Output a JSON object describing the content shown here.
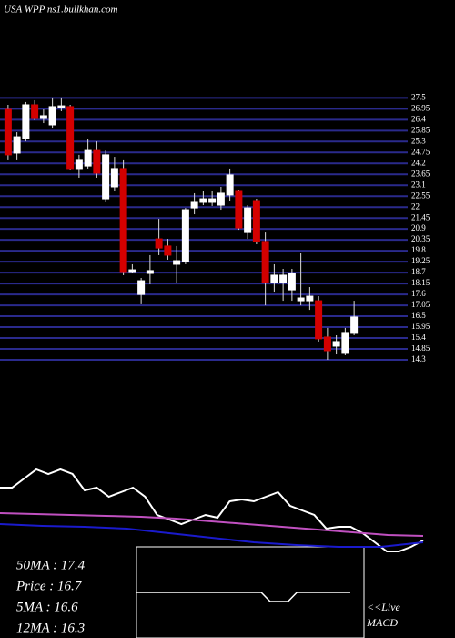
{
  "chart_data": {
    "type": "candlestick",
    "title": "USA WPP ns1.bullkhan.com",
    "ylim": [
      14.3,
      27.7
    ],
    "yticks": [
      27.5,
      26.95,
      26.4,
      25.85,
      25.3,
      24.75,
      24.2,
      23.65,
      23.1,
      22.55,
      22,
      21.45,
      20.9,
      20.35,
      19.8,
      19.25,
      18.7,
      18.15,
      17.6,
      17.05,
      16.5,
      15.95,
      15.4,
      14.85,
      14.3
    ],
    "grid": true,
    "grid_color": "#2a2a8c",
    "up_color": "#ffffff",
    "down_color": "#d40000",
    "candles": [
      {
        "open": 26.92,
        "high": 27.15,
        "low": 24.4,
        "close": 24.63
      },
      {
        "open": 24.72,
        "high": 25.77,
        "low": 24.4,
        "close": 25.54
      },
      {
        "open": 25.45,
        "high": 27.29,
        "low": 25.31,
        "close": 27.15
      },
      {
        "open": 27.15,
        "high": 27.38,
        "low": 26.37,
        "close": 26.46
      },
      {
        "open": 26.46,
        "high": 26.92,
        "low": 26.23,
        "close": 26.6
      },
      {
        "open": 26.14,
        "high": 27.52,
        "low": 26.0,
        "close": 27.06
      },
      {
        "open": 27.01,
        "high": 27.52,
        "low": 26.83,
        "close": 27.1
      },
      {
        "open": 27.06,
        "high": 27.15,
        "low": 23.85,
        "close": 23.94
      },
      {
        "open": 23.94,
        "high": 24.63,
        "low": 23.48,
        "close": 24.4
      },
      {
        "open": 24.07,
        "high": 25.45,
        "low": 23.94,
        "close": 24.85
      },
      {
        "open": 24.85,
        "high": 25.31,
        "low": 23.48,
        "close": 23.71
      },
      {
        "open": 22.42,
        "high": 24.85,
        "low": 22.24,
        "close": 24.63
      },
      {
        "open": 23.02,
        "high": 24.53,
        "low": 22.79,
        "close": 23.94
      },
      {
        "open": 23.94,
        "high": 24.4,
        "low": 18.57,
        "close": 18.75
      },
      {
        "open": 18.75,
        "high": 19.12,
        "low": 18.66,
        "close": 18.84
      },
      {
        "open": 17.6,
        "high": 18.43,
        "low": 17.15,
        "close": 18.29
      },
      {
        "open": 18.66,
        "high": 19.58,
        "low": 18.11,
        "close": 18.8
      },
      {
        "open": 20.4,
        "high": 21.41,
        "low": 19.58,
        "close": 19.94
      },
      {
        "open": 20.04,
        "high": 20.4,
        "low": 19.35,
        "close": 19.58
      },
      {
        "open": 19.12,
        "high": 20.04,
        "low": 18.2,
        "close": 19.3
      },
      {
        "open": 19.26,
        "high": 21.96,
        "low": 19.12,
        "close": 21.87
      },
      {
        "open": 21.96,
        "high": 22.7,
        "low": 21.64,
        "close": 22.24
      },
      {
        "open": 22.24,
        "high": 22.79,
        "low": 22.1,
        "close": 22.42
      },
      {
        "open": 22.24,
        "high": 22.79,
        "low": 22.06,
        "close": 22.42
      },
      {
        "open": 22.1,
        "high": 23.02,
        "low": 21.87,
        "close": 22.7
      },
      {
        "open": 22.61,
        "high": 23.94,
        "low": 22.33,
        "close": 23.62
      },
      {
        "open": 22.79,
        "high": 22.88,
        "low": 20.86,
        "close": 20.95
      },
      {
        "open": 20.72,
        "high": 22.1,
        "low": 20.4,
        "close": 21.96
      },
      {
        "open": 22.33,
        "high": 22.42,
        "low": 20.13,
        "close": 20.27
      },
      {
        "open": 20.27,
        "high": 20.72,
        "low": 17.05,
        "close": 18.2
      },
      {
        "open": 18.2,
        "high": 19.12,
        "low": 17.74,
        "close": 18.57
      },
      {
        "open": 18.2,
        "high": 18.89,
        "low": 17.28,
        "close": 18.57
      },
      {
        "open": 17.83,
        "high": 18.89,
        "low": 17.28,
        "close": 18.66
      },
      {
        "open": 17.28,
        "high": 19.67,
        "low": 17.05,
        "close": 17.42
      },
      {
        "open": 17.28,
        "high": 17.97,
        "low": 16.82,
        "close": 17.51
      },
      {
        "open": 17.28,
        "high": 17.51,
        "low": 15.22,
        "close": 15.36
      },
      {
        "open": 15.45,
        "high": 15.91,
        "low": 14.3,
        "close": 14.76
      },
      {
        "open": 14.99,
        "high": 15.54,
        "low": 14.62,
        "close": 15.22
      },
      {
        "open": 14.67,
        "high": 15.91,
        "low": 14.53,
        "close": 15.68
      },
      {
        "open": 15.68,
        "high": 17.28,
        "low": 15.54,
        "close": 16.46
      }
    ],
    "indicator_ylim": [
      -10,
      100
    ],
    "indicators": [
      {
        "color": "#ffffff",
        "values": [
          65,
          65,
          75,
          85,
          80,
          85,
          80,
          62,
          65,
          55,
          60,
          65,
          55,
          35,
          30,
          25,
          30,
          35,
          32,
          50,
          52,
          50,
          55,
          60,
          45,
          40,
          35,
          20,
          22,
          22,
          15,
          5,
          -5,
          -5,
          0,
          7
        ]
      },
      {
        "color": "#c050c0",
        "values": [
          37,
          36,
          35,
          34,
          33,
          31,
          28,
          25,
          22,
          19,
          16,
          13,
          12
        ]
      },
      {
        "color": "#1a1acc",
        "values": [
          25,
          23,
          22,
          20,
          15,
          10,
          5,
          2,
          0,
          0,
          5
        ]
      }
    ],
    "macd_ylim": [
      -50,
      50
    ],
    "macd": [
      0,
      0,
      0,
      0,
      0,
      0,
      0,
      0,
      0,
      0,
      0,
      0,
      0,
      0,
      0,
      -10,
      -10,
      -10,
      0,
      0,
      0,
      0,
      0,
      0,
      0
    ],
    "info": [
      "50MA : 17.4",
      "Price  : 16.7",
      "5MA : 16.6",
      "12MA : 16.3"
    ],
    "live": "<<Live",
    "macd_label": "MACD"
  }
}
